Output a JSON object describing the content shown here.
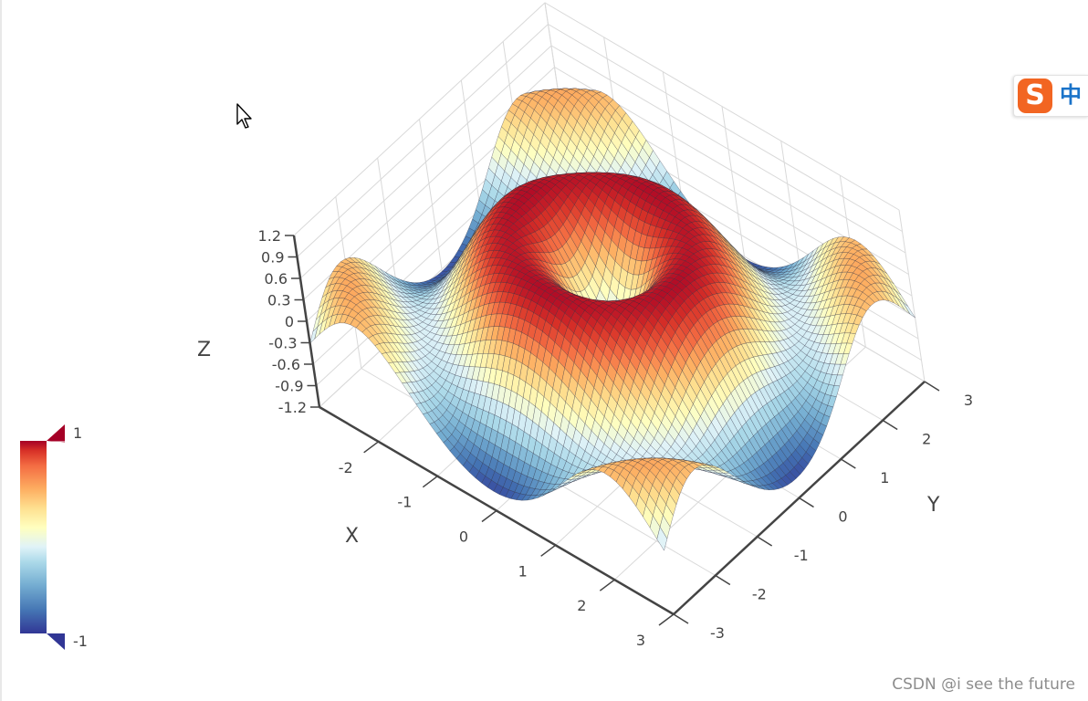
{
  "chart_data": {
    "type": "surface",
    "title": "",
    "x_range": [
      -3,
      3
    ],
    "y_range": [
      -3,
      3
    ],
    "z_range": [
      -1.2,
      1.2
    ],
    "x_ticks": [
      "-2",
      "-1",
      "0",
      "1",
      "2",
      "3"
    ],
    "y_ticks": [
      "-3",
      "-2",
      "-1",
      "0",
      "1",
      "2",
      "3"
    ],
    "z_ticks": [
      "1.2",
      "0.9",
      "0.6",
      "0.3",
      "0",
      "-0.3",
      "-0.6",
      "-0.9",
      "-1.2"
    ],
    "x_label": "X",
    "y_label": "Y",
    "z_label": "Z",
    "colorscale": "RdYlBu (reversed)",
    "colorbar": {
      "max_label": "1",
      "min_label": "-1",
      "range": [
        -1,
        1
      ]
    },
    "grid": true,
    "mesh_lines": true,
    "surface_shape": "rippled bowl: ring ridge around center, dips near edges, peaks at corners"
  },
  "overlays": {
    "watermark": "CSDN @i see the future",
    "ime_logo": "S",
    "ime_mode": "中"
  }
}
